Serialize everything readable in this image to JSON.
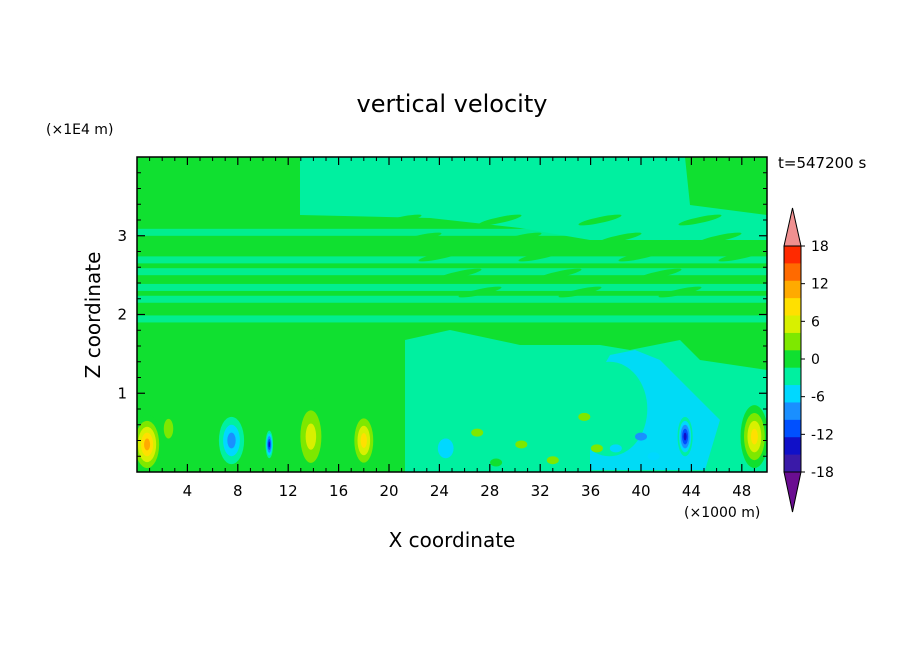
{
  "chart_data": {
    "type": "heatmap",
    "title": "vertical velocity",
    "xlabel": "X coordinate",
    "ylabel": "Z coordinate",
    "x_unit": "(×1000 m)",
    "y_unit": "(×1E4 m)",
    "time_label": "t=547200 s",
    "xlim": [
      0,
      50
    ],
    "ylim": [
      0,
      4
    ],
    "x_ticks": [
      4,
      8,
      12,
      16,
      20,
      24,
      28,
      32,
      36,
      40,
      44,
      48
    ],
    "y_ticks": [
      1,
      2,
      3
    ],
    "colorbar": {
      "levels": [
        -21,
        -18,
        -15,
        -12,
        -9,
        -6,
        -3,
        0,
        3,
        6,
        9,
        12,
        15,
        18,
        21
      ],
      "tick_labels": [
        "18",
        "12",
        "6",
        "0",
        "-6",
        "-12",
        "-18"
      ],
      "tick_values": [
        18,
        12,
        6,
        0,
        -6,
        -12,
        -18
      ],
      "colors": [
        "#6a0d91",
        "#3a1aa8",
        "#1010c8",
        "#0050ff",
        "#1a8fff",
        "#00d8ff",
        "#00f0a0",
        "#10e030",
        "#7ee800",
        "#d8f000",
        "#ffe000",
        "#ffaa00",
        "#ff6a00",
        "#ff2a00",
        "#f09090"
      ],
      "extend": "both"
    },
    "features": [
      {
        "x": 0.8,
        "z": 0.35,
        "w": 2.4,
        "h": 0.75,
        "value": 14
      },
      {
        "x": 2.5,
        "z": 0.55,
        "w": 1.5,
        "h": 0.5,
        "value": 5
      },
      {
        "x": 7.5,
        "z": 0.4,
        "w": 2.0,
        "h": 0.6,
        "value": -8
      },
      {
        "x": 10.5,
        "z": 0.35,
        "w": 0.6,
        "h": 0.35,
        "value": -13
      },
      {
        "x": 13.8,
        "z": 0.45,
        "w": 2.5,
        "h": 1.0,
        "value": 8
      },
      {
        "x": 18.0,
        "z": 0.4,
        "w": 2.0,
        "h": 0.75,
        "value": 11
      },
      {
        "x": 24.5,
        "z": 0.3,
        "w": 2.5,
        "h": 0.5,
        "value": -6
      },
      {
        "x": 37.5,
        "z": 0.8,
        "w": 6.0,
        "h": 1.2,
        "value": -3
      },
      {
        "x": 43.5,
        "z": 0.45,
        "w": 1.2,
        "h": 0.5,
        "value": -13
      },
      {
        "x": 49.0,
        "z": 0.45,
        "w": 2.2,
        "h": 0.8,
        "value": 11
      }
    ]
  }
}
